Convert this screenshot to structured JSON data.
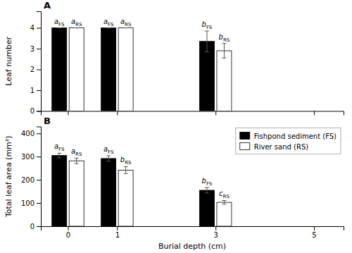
{
  "chart_data": [
    {
      "type": "bar",
      "title": "A",
      "ylabel": "Leaf number",
      "x": [
        0,
        1,
        3
      ],
      "xlim": [
        -0.55,
        5.6
      ],
      "xticks": [
        0,
        1,
        3,
        5
      ],
      "ylim": [
        0,
        4.8
      ],
      "yticks": [
        0,
        1,
        2,
        3,
        4
      ],
      "tick_labels": "y",
      "series": [
        {
          "color": "#000000",
          "values": [
            4.0,
            4.0,
            3.35
          ],
          "errors": [
            0.0,
            0.0,
            0.5
          ],
          "annotations": [
            "a",
            "a",
            "b"
          ],
          "annotation_subscript": "FS"
        },
        {
          "color": "#ffffff",
          "values": [
            4.0,
            4.0,
            2.9
          ],
          "errors": [
            0.0,
            0.0,
            0.35
          ],
          "annotations": [
            "a",
            "a",
            "b"
          ],
          "annotation_subscript": "RS"
        }
      ]
    },
    {
      "type": "bar",
      "title": "B",
      "ylabel": "Total leaf area (mm²)",
      "xlabel": "Burial depth (cm)",
      "x": [
        0,
        1,
        3
      ],
      "xlim": [
        -0.55,
        5.6
      ],
      "xticks": [
        0,
        1,
        3,
        5
      ],
      "ylim": [
        0,
        430
      ],
      "yticks": [
        0,
        100,
        200,
        300,
        400
      ],
      "legend": "upper right",
      "series": [
        {
          "name": "Fishpond sediment (FS)",
          "color": "#000000",
          "values": [
            305,
            292,
            155
          ],
          "errors": [
            10,
            12,
            12
          ],
          "annotations": [
            "a",
            "a",
            "b"
          ],
          "annotation_subscript": "FS"
        },
        {
          "name": "River sand (RS)",
          "color": "#ffffff",
          "values": [
            282,
            242,
            103
          ],
          "errors": [
            12,
            15,
            8
          ],
          "annotations": [
            "a",
            "b",
            "c"
          ],
          "annotation_subscript": "RS"
        }
      ]
    }
  ]
}
